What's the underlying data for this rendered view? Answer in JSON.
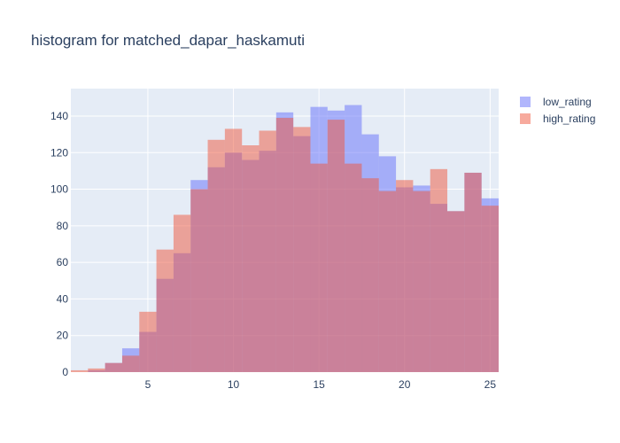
{
  "chart_data": {
    "type": "bar",
    "title": "histogram for matched_dapar_haskamuti",
    "xlabel": "",
    "ylabel": "",
    "bin_width": 1,
    "bins": [
      0.5,
      1.5,
      2.5,
      3.5,
      4.5,
      5.5,
      6.5,
      7.5,
      8.5,
      9.5,
      10.5,
      11.5,
      12.5,
      13.5,
      14.5,
      15.5,
      16.5,
      17.5,
      18.5,
      19.5,
      20.5,
      21.5,
      22.5,
      23.5,
      24.5
    ],
    "xlim": [
      0.5,
      25.5
    ],
    "ylim": [
      0,
      155
    ],
    "x_ticks": [
      5,
      10,
      15,
      20,
      25
    ],
    "y_ticks": [
      0,
      20,
      40,
      60,
      80,
      100,
      120,
      140
    ],
    "grid": true,
    "legend_position": "top-right",
    "overlay": true,
    "series": [
      {
        "name": "low_rating",
        "color": "#636efa",
        "values": [
          0,
          1,
          5,
          13,
          22,
          51,
          65,
          105,
          112,
          120,
          116,
          121,
          142,
          129,
          145,
          143,
          146,
          130,
          118,
          101,
          102,
          92,
          88,
          109,
          95
        ]
      },
      {
        "name": "high_rating",
        "color": "#ef553b",
        "values": [
          1,
          2,
          5,
          9,
          33,
          67,
          86,
          100,
          127,
          133,
          124,
          132,
          139,
          134,
          114,
          138,
          114,
          106,
          99,
          105,
          99,
          111,
          88,
          109,
          91
        ]
      }
    ]
  }
}
